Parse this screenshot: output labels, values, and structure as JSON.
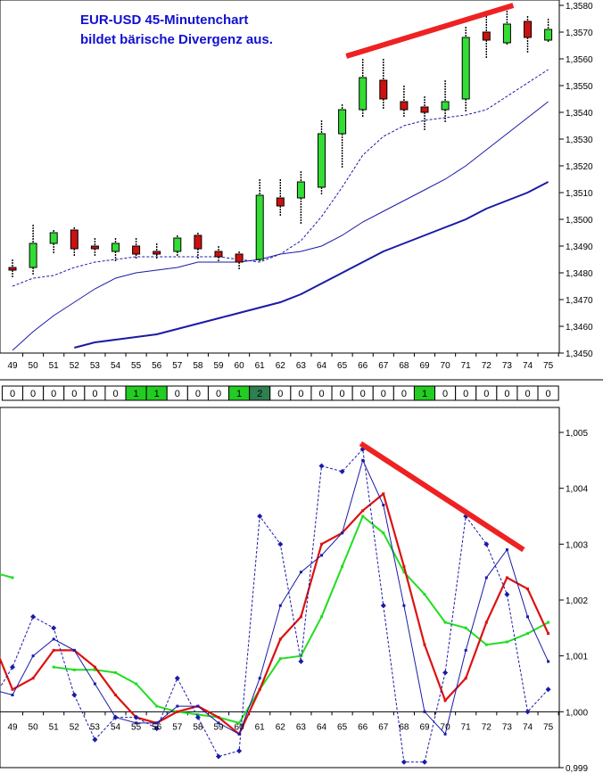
{
  "title_line1": "EUR-USD  45-Minutenchart",
  "title_line2": "bildet bärische Divergenz aus.",
  "colors": {
    "up_candle": "#33dd33",
    "down_candle": "#cc1111",
    "ma": "#1a1aa8",
    "trendline": "#ee2222",
    "signal_cell": "#22cc22",
    "signal_cell_dark": "#2f7f50",
    "osc_green": "#22dd22",
    "osc_red": "#dd1111",
    "osc_blue": "#1a1aa8"
  },
  "chart_data": [
    {
      "type": "candlestick",
      "title": "EUR-USD  45-Minutenchart",
      "x": [
        49,
        50,
        51,
        52,
        53,
        54,
        55,
        56,
        57,
        58,
        59,
        60,
        61,
        62,
        63,
        64,
        65,
        66,
        67,
        68,
        69,
        70,
        71,
        72,
        73,
        74,
        75
      ],
      "ylim": [
        1.345,
        1.358
      ],
      "y_ticks": [
        "1,3450",
        "1,3460",
        "1,3470",
        "1,3480",
        "1,3490",
        "1,3500",
        "1,3510",
        "1,3520",
        "1,3530",
        "1,3540",
        "1,3550",
        "1,3560",
        "1,3570",
        "1,3580"
      ],
      "candles": [
        {
          "x": 49,
          "open": 1.3482,
          "close": 1.3481,
          "high": 1.3485,
          "low": 1.3478
        },
        {
          "x": 50,
          "open": 1.3482,
          "close": 1.3491,
          "high": 1.3498,
          "low": 1.3479
        },
        {
          "x": 51,
          "open": 1.3491,
          "close": 1.3495,
          "high": 1.3496,
          "low": 1.3487
        },
        {
          "x": 52,
          "open": 1.3496,
          "close": 1.3489,
          "high": 1.3497,
          "low": 1.3486
        },
        {
          "x": 53,
          "open": 1.349,
          "close": 1.3489,
          "high": 1.3493,
          "low": 1.3486
        },
        {
          "x": 54,
          "open": 1.3488,
          "close": 1.3491,
          "high": 1.3493,
          "low": 1.3484
        },
        {
          "x": 55,
          "open": 1.349,
          "close": 1.3487,
          "high": 1.3493,
          "low": 1.3485
        },
        {
          "x": 56,
          "open": 1.3488,
          "close": 1.3487,
          "high": 1.3491,
          "low": 1.3485
        },
        {
          "x": 57,
          "open": 1.3488,
          "close": 1.3493,
          "high": 1.3494,
          "low": 1.3486
        },
        {
          "x": 58,
          "open": 1.3494,
          "close": 1.3489,
          "high": 1.3495,
          "low": 1.3485
        },
        {
          "x": 59,
          "open": 1.3488,
          "close": 1.3486,
          "high": 1.349,
          "low": 1.3484
        },
        {
          "x": 60,
          "open": 1.3487,
          "close": 1.3484,
          "high": 1.3488,
          "low": 1.3481
        },
        {
          "x": 61,
          "open": 1.3485,
          "close": 1.3509,
          "high": 1.3515,
          "low": 1.3484
        },
        {
          "x": 62,
          "open": 1.3508,
          "close": 1.3505,
          "high": 1.3515,
          "low": 1.3501
        },
        {
          "x": 63,
          "open": 1.3508,
          "close": 1.3514,
          "high": 1.3518,
          "low": 1.3498
        },
        {
          "x": 64,
          "open": 1.3512,
          "close": 1.3532,
          "high": 1.3537,
          "low": 1.3509
        },
        {
          "x": 65,
          "open": 1.3532,
          "close": 1.3541,
          "high": 1.3543,
          "low": 1.3519
        },
        {
          "x": 66,
          "open": 1.3541,
          "close": 1.3553,
          "high": 1.356,
          "low": 1.3538
        },
        {
          "x": 67,
          "open": 1.3552,
          "close": 1.3545,
          "high": 1.356,
          "low": 1.3541
        },
        {
          "x": 68,
          "open": 1.3544,
          "close": 1.3541,
          "high": 1.355,
          "low": 1.3538
        },
        {
          "x": 69,
          "open": 1.3542,
          "close": 1.354,
          "high": 1.3546,
          "low": 1.3533
        },
        {
          "x": 70,
          "open": 1.3541,
          "close": 1.3544,
          "high": 1.3552,
          "low": 1.3536
        },
        {
          "x": 71,
          "open": 1.3545,
          "close": 1.3568,
          "high": 1.3572,
          "low": 1.354
        },
        {
          "x": 72,
          "open": 1.357,
          "close": 1.3567,
          "high": 1.3578,
          "low": 1.356
        },
        {
          "x": 73,
          "open": 1.3566,
          "close": 1.3573,
          "high": 1.358,
          "low": 1.3565
        },
        {
          "x": 74,
          "open": 1.3574,
          "close": 1.3568,
          "high": 1.3576,
          "low": 1.3562
        },
        {
          "x": 75,
          "open": 1.3567,
          "close": 1.3571,
          "high": 1.3575,
          "low": 1.3566
        }
      ],
      "moving_averages": [
        {
          "style": "dashed",
          "values": [
            1.3475,
            1.3478,
            1.3479,
            1.3482,
            1.3484,
            1.3485,
            1.3486,
            1.3486,
            1.3486,
            1.3486,
            1.3486,
            1.3485,
            1.3484,
            1.3487,
            1.3492,
            1.3501,
            1.3512,
            1.3524,
            1.3531,
            1.3535,
            1.3537,
            1.3538,
            1.3539,
            1.3541,
            1.3546,
            1.3551,
            1.3556
          ]
        },
        {
          "style": "solid",
          "values": [
            1.3451,
            1.3458,
            1.3464,
            1.3469,
            1.3474,
            1.3478,
            1.348,
            1.3481,
            1.3482,
            1.3484,
            1.3484,
            1.3484,
            1.3485,
            1.3487,
            1.3488,
            1.349,
            1.3494,
            1.3499,
            1.3503,
            1.3507,
            1.3511,
            1.3515,
            1.352,
            1.3526,
            1.3532,
            1.3538,
            1.3544
          ]
        },
        {
          "style": "thick",
          "values": [
            1.344,
            1.3445,
            1.3449,
            1.3452,
            1.3454,
            1.3455,
            1.3456,
            1.3457,
            1.3459,
            1.3461,
            1.3463,
            1.3465,
            1.3467,
            1.3469,
            1.3472,
            1.3476,
            1.348,
            1.3484,
            1.3488,
            1.3491,
            1.3494,
            1.3497,
            1.35,
            1.3504,
            1.3507,
            1.351,
            1.3514
          ]
        }
      ],
      "annotation": {
        "type": "trendline",
        "from": {
          "x": 65.2,
          "y": 1.3561
        },
        "to": {
          "x": 73.3,
          "y": 1.358
        }
      }
    },
    {
      "type": "table",
      "x": [
        49,
        50,
        51,
        52,
        53,
        54,
        55,
        56,
        57,
        58,
        59,
        60,
        61,
        62,
        63,
        64,
        65,
        66,
        67,
        68,
        69,
        70,
        71,
        72,
        73,
        74,
        75
      ],
      "values": [
        0,
        0,
        0,
        0,
        0,
        0,
        1,
        1,
        0,
        0,
        0,
        1,
        2,
        0,
        0,
        0,
        0,
        0,
        0,
        0,
        1,
        0,
        0,
        0,
        0,
        0,
        0
      ],
      "highlight": [
        false,
        false,
        false,
        false,
        false,
        false,
        true,
        true,
        false,
        false,
        false,
        true,
        "dark",
        false,
        false,
        false,
        false,
        false,
        false,
        false,
        true,
        false,
        false,
        false,
        false,
        false,
        false
      ]
    },
    {
      "type": "line",
      "x": [
        48,
        49,
        50,
        51,
        52,
        53,
        54,
        55,
        56,
        57,
        58,
        59,
        60,
        61,
        62,
        63,
        64,
        65,
        66,
        67,
        68,
        69,
        70,
        71,
        72,
        73,
        74,
        75
      ],
      "ylim": [
        0.999,
        1.005
      ],
      "y_ticks": [
        "0,999",
        "1,000",
        "1,001",
        "1,002",
        "1,003",
        "1,004",
        "1,005"
      ],
      "series": [
        {
          "style": "green",
          "values": [
            1.0025,
            1.0024,
            null,
            1.0008,
            1.00075,
            1.00075,
            1.0007,
            1.0005,
            1.0001,
            1.0,
            0.99995,
            0.9999,
            0.9998,
            1.0004,
            1.00095,
            1.001,
            1.0017,
            1.0026,
            1.0035,
            1.0032,
            1.0025,
            1.0021,
            1.0016,
            1.0015,
            1.0012,
            1.00125,
            1.0014,
            1.0016
          ]
        },
        {
          "style": "red",
          "values": [
            1.0013,
            1.0004,
            1.0006,
            1.0011,
            1.0011,
            1.0008,
            1.0003,
            0.9999,
            0.9998,
            1.0,
            1.0001,
            0.9999,
            0.9996,
            1.0004,
            1.0013,
            1.0017,
            1.003,
            1.0032,
            1.0036,
            1.0039,
            1.0026,
            1.0012,
            1.0002,
            1.0006,
            1.0016,
            1.0024,
            1.0022,
            1.0014
          ]
        },
        {
          "style": "blue",
          "values": [
            1.0004,
            1.0003,
            1.001,
            1.0013,
            1.0011,
            1.0005,
            0.9999,
            0.9998,
            0.9998,
            1.0001,
            1.0001,
            0.9998,
            0.9996,
            1.0006,
            1.0019,
            1.0025,
            1.0028,
            1.0032,
            1.0045,
            1.0037,
            1.0019,
            1.0,
            0.9996,
            1.0011,
            1.0024,
            1.0029,
            1.0017,
            1.0009
          ]
        },
        {
          "style": "blue-dashed",
          "values": [
            1.0002,
            1.0008,
            1.0017,
            1.0015,
            1.0003,
            0.9995,
            0.9999,
            0.9999,
            0.9997,
            1.0006,
            0.9999,
            0.9992,
            0.9993,
            1.0035,
            1.003,
            1.0009,
            1.0044,
            1.0043,
            1.0047,
            1.0019,
            0.9991,
            0.9991,
            1.0007,
            1.0035,
            1.003,
            1.0021,
            1.0,
            1.0004
          ]
        }
      ],
      "annotation": {
        "type": "trendline",
        "from": {
          "x": 65.9,
          "y": 1.0048
        },
        "to": {
          "x": 73.8,
          "y": 1.0029
        }
      }
    }
  ]
}
